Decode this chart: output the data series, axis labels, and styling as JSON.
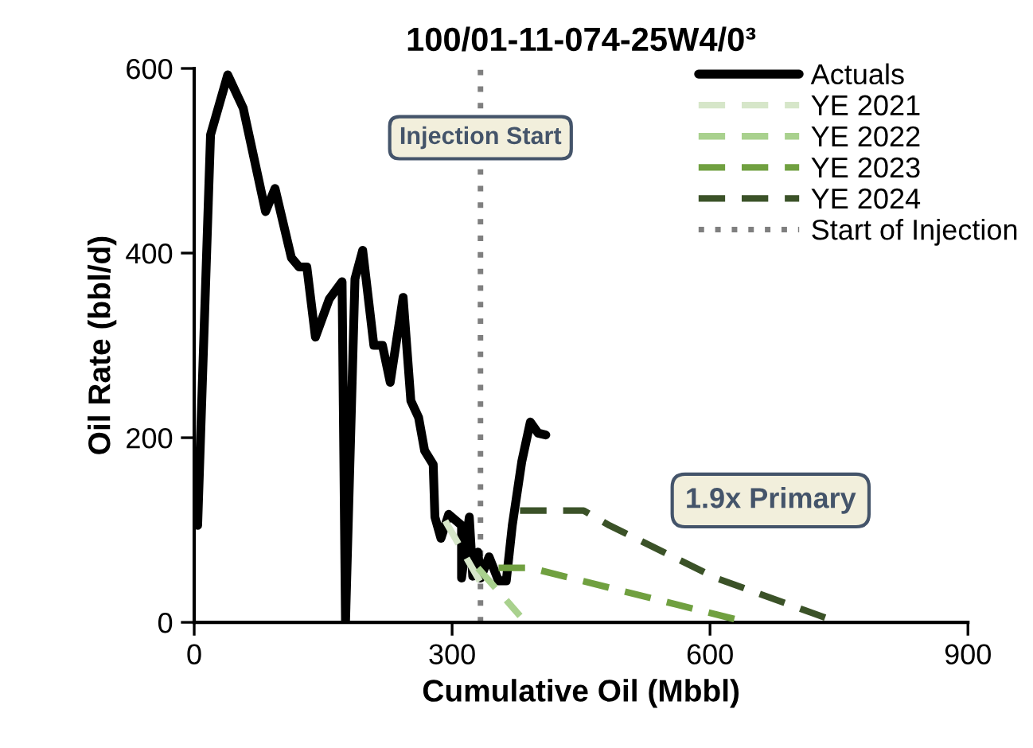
{
  "chart_data": {
    "type": "line",
    "title": "100/01-11-074-25W4/0³",
    "xlabel": "Cumulative Oil (Mbbl)",
    "ylabel": "Oil Rate (bbl/d)",
    "xlim": [
      0,
      900
    ],
    "xticks": [
      0,
      300,
      600,
      900
    ],
    "ylim": [
      0,
      600
    ],
    "yticks": [
      0,
      200,
      400,
      600
    ],
    "grid": false,
    "legend": "top right",
    "marker": "none",
    "series": [
      {
        "name": "Actuals",
        "color": "#000000",
        "line_style": "solid",
        "x": [
          4,
          19,
          39,
          57,
          83,
          94,
          113,
          122,
          131,
          141,
          157,
          172,
          176,
          187,
          196,
          209,
          219,
          228,
          243,
          252,
          261,
          268,
          278,
          280,
          287,
          296,
          311,
          311,
          320,
          324,
          330,
          333,
          343,
          354,
          363,
          370,
          381,
          391,
          400,
          409
        ],
        "values": [
          105,
          528,
          593,
          557,
          445,
          470,
          395,
          385,
          385,
          309,
          350,
          369,
          0,
          372,
          403,
          300,
          300,
          260,
          352,
          240,
          222,
          186,
          171,
          114,
          91,
          117,
          105,
          48,
          114,
          50,
          76,
          48,
          71,
          45,
          45,
          105,
          174,
          217,
          205,
          203
        ]
      },
      {
        "name": "YE 2021",
        "color": "#d6e6c9",
        "line_style": "dashed",
        "x": [
          292,
          335
        ],
        "values": [
          110,
          40
        ]
      },
      {
        "name": "YE 2022",
        "color": "#a9d18e",
        "line_style": "dashed",
        "x": [
          330,
          379
        ],
        "values": [
          59,
          7
        ]
      },
      {
        "name": "YE 2023",
        "color": "#70a040",
        "line_style": "dashed",
        "x": [
          354,
          391,
          631
        ],
        "values": [
          59,
          59,
          3
        ]
      },
      {
        "name": "YE 2024",
        "color": "#3b5228",
        "line_style": "dashed",
        "x": [
          379,
          453,
          483,
          607,
          743
        ],
        "values": [
          121,
          121,
          105,
          48,
          2
        ]
      },
      {
        "name": "Start of Injection",
        "color": "#7f7f7f",
        "line_style": "dotted",
        "x": [
          333,
          333
        ],
        "values": [
          0,
          600
        ]
      }
    ],
    "annotations": [
      {
        "text": "Injection Start",
        "x": 333,
        "y": 525
      },
      "1.9x Primary"
    ]
  }
}
